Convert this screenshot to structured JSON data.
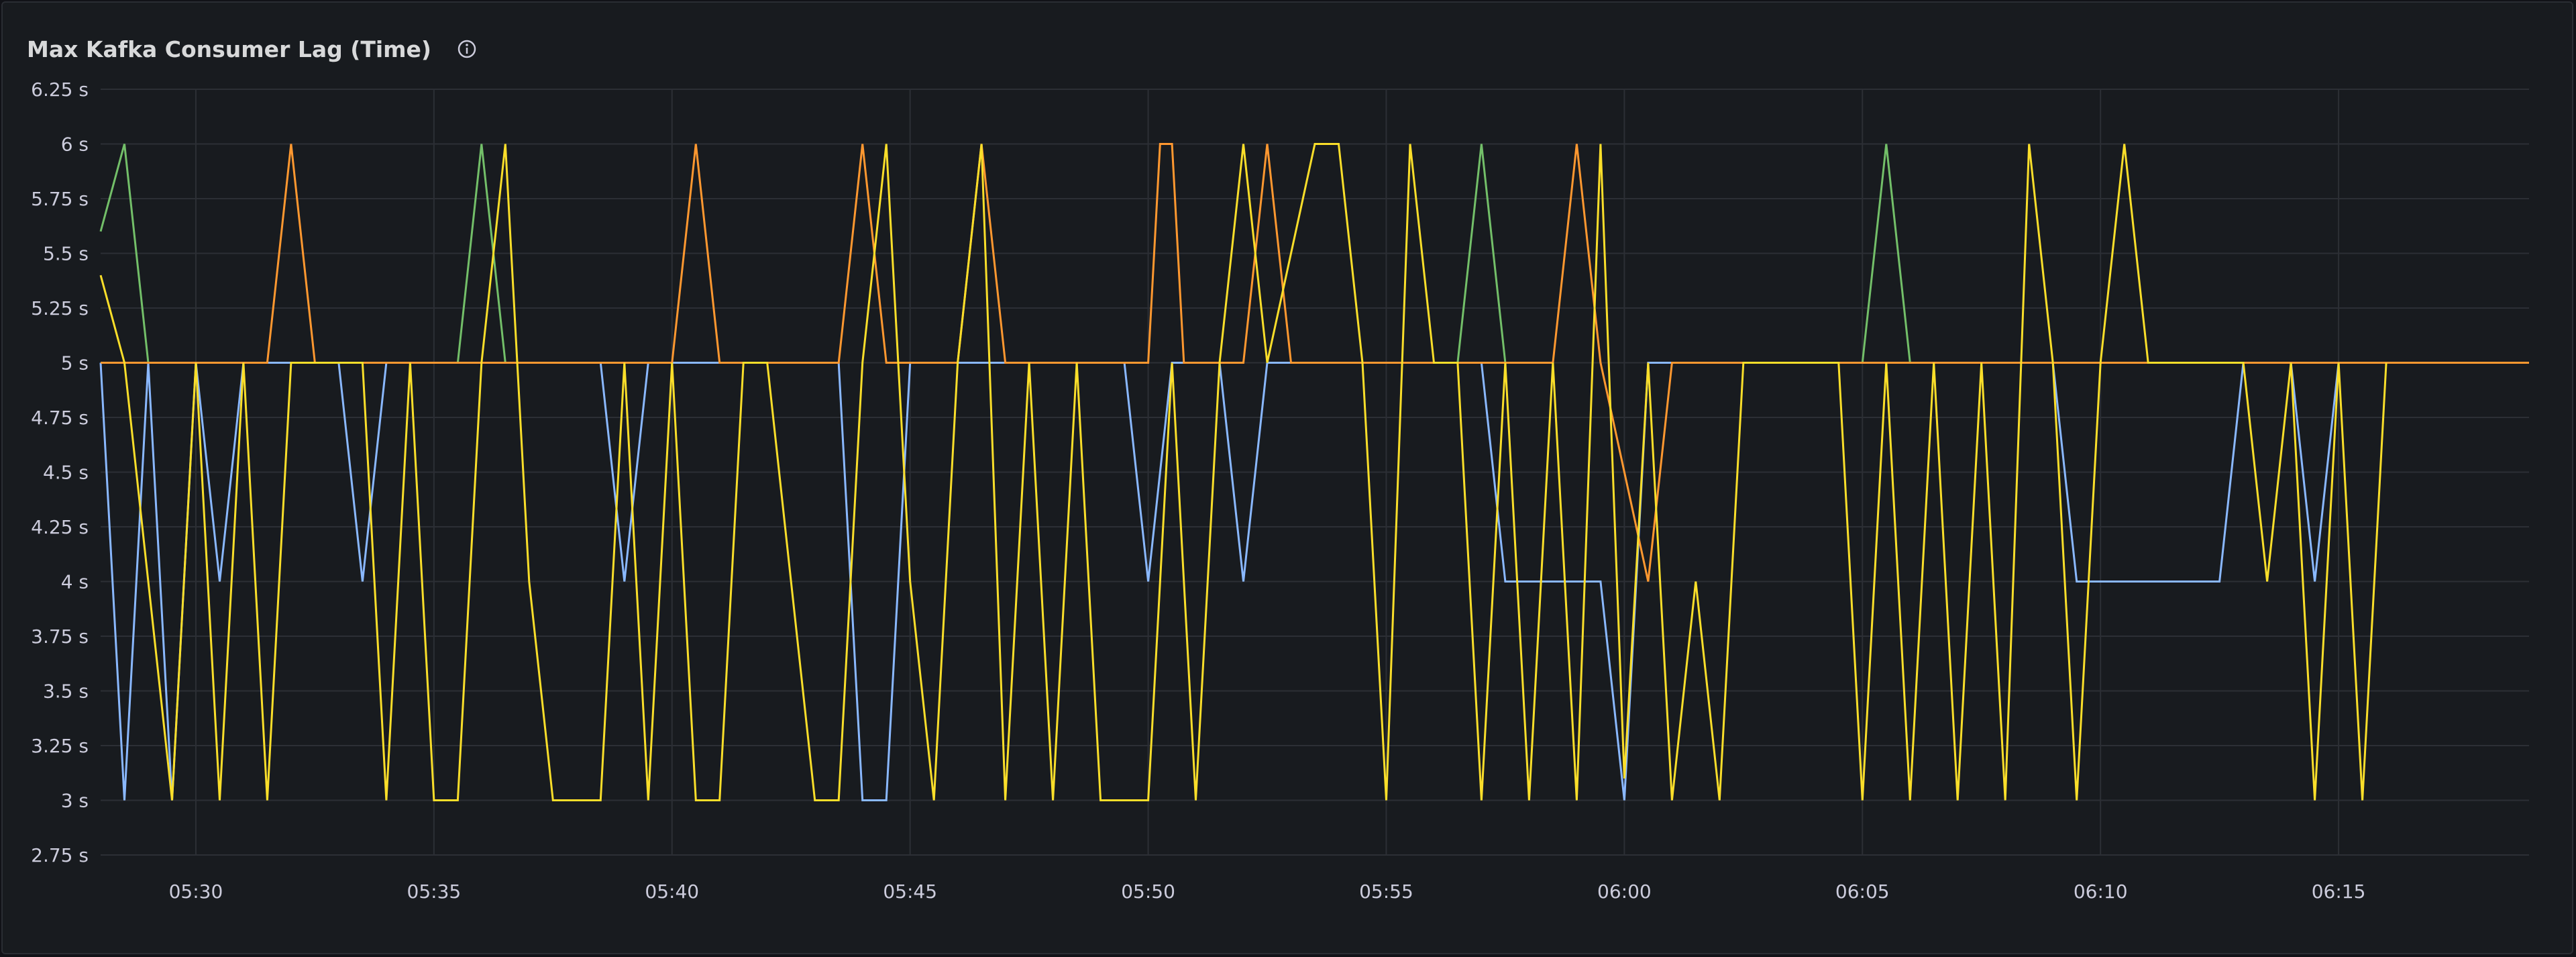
{
  "panel": {
    "title": "Max Kafka Consumer Lag (Time)",
    "info_icon": "info-circle-icon"
  },
  "chart_data": {
    "type": "line",
    "title": "Max Kafka Consumer Lag (Time)",
    "xlabel": "",
    "ylabel": "",
    "ylim": [
      2.75,
      6.25
    ],
    "yticks": [
      {
        "value": 2.75,
        "label": "2.75 s"
      },
      {
        "value": 3,
        "label": "3 s"
      },
      {
        "value": 3.25,
        "label": "3.25 s"
      },
      {
        "value": 3.5,
        "label": "3.5 s"
      },
      {
        "value": 3.75,
        "label": "3.75 s"
      },
      {
        "value": 4,
        "label": "4 s"
      },
      {
        "value": 4.25,
        "label": "4.25 s"
      },
      {
        "value": 4.5,
        "label": "4.5 s"
      },
      {
        "value": 4.75,
        "label": "4.75 s"
      },
      {
        "value": 5,
        "label": "5 s"
      },
      {
        "value": 5.25,
        "label": "5.25 s"
      },
      {
        "value": 5.5,
        "label": "5.5 s"
      },
      {
        "value": 5.75,
        "label": "5.75 s"
      },
      {
        "value": 6,
        "label": "6 s"
      },
      {
        "value": 6.25,
        "label": "6.25 s"
      }
    ],
    "xlim": [
      "05:28",
      "06:19"
    ],
    "xticks": [
      "05:30",
      "05:35",
      "05:40",
      "05:45",
      "05:50",
      "05:55",
      "06:00",
      "06:05",
      "06:10",
      "06:15"
    ],
    "grid": true,
    "legend": "none",
    "series": [
      {
        "color": "#73bf69",
        "points": [
          [
            "05:28:00",
            5.6
          ],
          [
            "05:28:30",
            6
          ],
          [
            "05:29:00",
            5
          ]
        ]
      },
      {
        "color": "#73bf69",
        "points": [
          [
            "05:35:30",
            5
          ],
          [
            "05:36:00",
            6
          ],
          [
            "05:36:30",
            5
          ]
        ]
      },
      {
        "color": "#73bf69",
        "points": [
          [
            "05:56:30",
            5
          ],
          [
            "05:57:00",
            6
          ],
          [
            "05:57:30",
            5
          ]
        ]
      },
      {
        "color": "#73bf69",
        "points": [
          [
            "06:05:00",
            5
          ],
          [
            "06:05:30",
            6
          ],
          [
            "06:06:00",
            5
          ]
        ]
      },
      {
        "color": "#8ab8ff",
        "points": [
          [
            "05:28:00",
            5
          ],
          [
            "05:28:30",
            3
          ],
          [
            "05:29:00",
            5
          ],
          [
            "05:29:30",
            3
          ],
          [
            "05:30:00",
            5
          ],
          [
            "05:30:30",
            4
          ],
          [
            "05:31:00",
            5
          ],
          [
            "05:33:00",
            5
          ],
          [
            "05:33:30",
            4
          ],
          [
            "05:34:00",
            5
          ],
          [
            "05:38:30",
            5
          ],
          [
            "05:39:00",
            4
          ],
          [
            "05:39:30",
            5
          ],
          [
            "05:43:30",
            5
          ],
          [
            "05:44:00",
            3
          ],
          [
            "05:44:30",
            3
          ],
          [
            "05:45:00",
            5
          ],
          [
            "05:49:30",
            5
          ],
          [
            "05:50:00",
            4
          ],
          [
            "05:50:30",
            5
          ],
          [
            "05:51:30",
            5
          ],
          [
            "05:52:00",
            4
          ],
          [
            "05:52:30",
            5
          ],
          [
            "05:57:00",
            5
          ],
          [
            "05:57:30",
            4
          ],
          [
            "05:59:30",
            4
          ],
          [
            "06:00:00",
            3
          ],
          [
            "06:00:30",
            5
          ],
          [
            "06:09:00",
            5
          ],
          [
            "06:09:30",
            4
          ],
          [
            "06:12:30",
            4
          ],
          [
            "06:13:00",
            5
          ],
          [
            "06:14:00",
            5
          ],
          [
            "06:14:30",
            4
          ],
          [
            "06:15:00",
            5
          ]
        ]
      },
      {
        "color": "#ff9830",
        "points": [
          [
            "05:28:00",
            5
          ],
          [
            "05:31:30",
            5
          ],
          [
            "05:32:00",
            6
          ],
          [
            "05:32:30",
            5
          ],
          [
            "05:40:00",
            5
          ],
          [
            "05:40:30",
            6
          ],
          [
            "05:41:00",
            5
          ],
          [
            "05:43:30",
            5
          ],
          [
            "05:44:00",
            6
          ],
          [
            "05:44:30",
            5
          ],
          [
            "05:46:00",
            5
          ],
          [
            "05:46:30",
            6
          ],
          [
            "05:47:00",
            5
          ],
          [
            "05:50:00",
            5
          ],
          [
            "05:50:15",
            6
          ],
          [
            "05:50:30",
            6
          ],
          [
            "05:50:45",
            5
          ],
          [
            "05:52:00",
            5
          ],
          [
            "05:52:30",
            6
          ],
          [
            "05:53:00",
            5
          ],
          [
            "05:58:30",
            5
          ],
          [
            "05:59:00",
            6
          ],
          [
            "05:59:30",
            5
          ],
          [
            "06:00:30",
            4
          ],
          [
            "06:01:00",
            5
          ],
          [
            "06:19:00",
            5
          ]
        ]
      },
      {
        "color": "#fade2a",
        "points": [
          [
            "05:28:00",
            5.4
          ],
          [
            "05:28:30",
            5
          ],
          [
            "05:29:00",
            4
          ],
          [
            "05:29:30",
            3
          ],
          [
            "05:30:00",
            5
          ],
          [
            "05:30:30",
            3
          ],
          [
            "05:31:00",
            5
          ],
          [
            "05:31:30",
            3
          ],
          [
            "05:32:00",
            5
          ],
          [
            "05:33:30",
            5
          ],
          [
            "05:34:00",
            3
          ],
          [
            "05:34:30",
            5
          ],
          [
            "05:35:00",
            3
          ],
          [
            "05:35:30",
            3
          ],
          [
            "05:36:00",
            5
          ],
          [
            "05:36:30",
            6
          ],
          [
            "05:37:00",
            4
          ],
          [
            "05:37:30",
            3
          ],
          [
            "05:38:30",
            3
          ],
          [
            "05:39:00",
            5
          ],
          [
            "05:39:30",
            3
          ],
          [
            "05:40:00",
            5
          ],
          [
            "05:40:30",
            3
          ],
          [
            "05:41:00",
            3
          ],
          [
            "05:41:30",
            5
          ],
          [
            "05:42:00",
            5
          ],
          [
            "05:42:30",
            4
          ],
          [
            "05:43:00",
            3
          ],
          [
            "05:43:30",
            3
          ],
          [
            "05:44:00",
            5
          ],
          [
            "05:44:30",
            6
          ],
          [
            "05:45:00",
            4
          ],
          [
            "05:45:30",
            3
          ],
          [
            "05:46:00",
            5
          ],
          [
            "05:46:30",
            6
          ],
          [
            "05:47:00",
            3
          ],
          [
            "05:47:30",
            5
          ],
          [
            "05:48:00",
            3
          ],
          [
            "05:48:30",
            5
          ],
          [
            "05:49:00",
            3
          ],
          [
            "05:50:00",
            3
          ],
          [
            "05:50:30",
            5
          ],
          [
            "05:51:00",
            3
          ],
          [
            "05:51:30",
            5
          ],
          [
            "05:52:00",
            6
          ],
          [
            "05:52:30",
            5
          ],
          [
            "05:53:30",
            6
          ],
          [
            "05:54:00",
            6
          ],
          [
            "05:54:30",
            5
          ],
          [
            "05:55:00",
            3
          ],
          [
            "05:55:30",
            6
          ],
          [
            "05:56:00",
            5
          ],
          [
            "05:56:30",
            5
          ],
          [
            "05:57:00",
            3
          ],
          [
            "05:57:30",
            5
          ],
          [
            "05:58:00",
            3
          ],
          [
            "05:58:30",
            5
          ],
          [
            "05:59:00",
            3
          ],
          [
            "05:59:30",
            6
          ],
          [
            "06:00:00",
            3.1
          ],
          [
            "06:00:30",
            5
          ],
          [
            "06:01:00",
            3
          ],
          [
            "06:01:30",
            4
          ],
          [
            "06:02:00",
            3
          ],
          [
            "06:02:30",
            5
          ],
          [
            "06:04:30",
            5
          ],
          [
            "06:05:00",
            3
          ],
          [
            "06:05:30",
            5
          ],
          [
            "06:06:00",
            3
          ],
          [
            "06:06:30",
            5
          ],
          [
            "06:07:00",
            3
          ],
          [
            "06:07:30",
            5
          ],
          [
            "06:08:00",
            3
          ],
          [
            "06:08:30",
            6
          ],
          [
            "06:09:00",
            5
          ],
          [
            "06:09:30",
            3
          ],
          [
            "06:10:00",
            5
          ],
          [
            "06:10:30",
            6
          ],
          [
            "06:11:00",
            5
          ],
          [
            "06:13:00",
            5
          ],
          [
            "06:13:30",
            4
          ],
          [
            "06:14:00",
            5
          ],
          [
            "06:14:30",
            3
          ],
          [
            "06:15:00",
            5
          ],
          [
            "06:15:30",
            3
          ],
          [
            "06:16:00",
            5
          ]
        ]
      }
    ]
  }
}
